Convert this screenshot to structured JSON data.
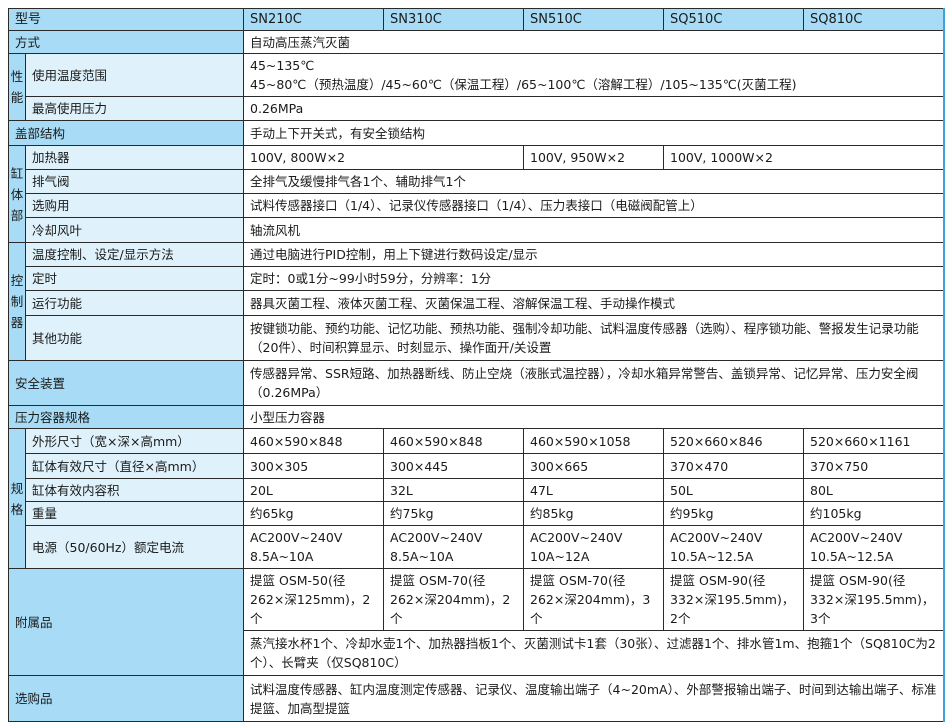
{
  "header": {
    "label": "型号",
    "models": [
      "SN210C",
      "SN310C",
      "SN510C",
      "SQ510C",
      "SQ810C"
    ]
  },
  "method": {
    "label": "方式",
    "value": "自动高压蒸汽灭菌"
  },
  "performance": {
    "group": "性能",
    "temp_label": "使用温度范围",
    "temp_line1": "45~135℃",
    "temp_line2": "45~80℃（预热温度）/45~60℃（保温工程）/65~100℃（溶解工程）/105~135℃(灭菌工程)",
    "pressure_label": "最高使用压力",
    "pressure_value": "0.26MPa"
  },
  "lid": {
    "label": "盖部结构",
    "value": "手动上下开关式，有安全锁结构"
  },
  "tank": {
    "group": "缸体部",
    "heater_label": "加热器",
    "heater": [
      "100V, 800W×2",
      "100V, 950W×2",
      "100V, 1000W×2"
    ],
    "exhaust_label": "排气阀",
    "exhaust": "全排气及缓慢排气各1个、辅助排气1个",
    "option_label": "选购用",
    "option": "试料传感器接口（1/4）、记录仪传感器接口（1/4）、压力表接口（电磁阀配管上）",
    "fan_label": "冷却风叶",
    "fan": "轴流风机"
  },
  "controller": {
    "group": "控制器",
    "temp_label": "温度控制、设定/显示方法",
    "temp": "通过电脑进行PID控制，用上下键进行数码设定/显示",
    "timer_label": "定时",
    "timer": "定时：0或1分~99小时59分，分辨率：1分",
    "run_label": "运行功能",
    "run": "器具灭菌工程、液体灭菌工程、灭菌保温工程、溶解保温工程、手动操作模式",
    "other_label": "其他功能",
    "other": "按键锁功能、预约功能、记忆功能、预热功能、强制冷却功能、试料温度传感器（选购）、程序锁功能、警报发生记录功能（20件）、时间积算显示、时刻显示、操作面开/关设置"
  },
  "safety": {
    "label": "安全装置",
    "value": "传感器异常、SSR短路、加热器断线、防止空烧（液胀式温控器），冷却水箱异常警告、盖锁异常、记忆异常、压力安全阀（0.26MPa）"
  },
  "vessel": {
    "label": "压力容器规格",
    "value": "小型压力容器"
  },
  "specs": {
    "group": "规格",
    "rows": [
      {
        "label": "外形尺寸（宽×深×高mm）",
        "values": [
          "460×590×848",
          "460×590×848",
          "460×590×1058",
          "520×660×846",
          "520×660×1161"
        ]
      },
      {
        "label": "缸体有效尺寸（直径×高mm）",
        "values": [
          "300×305",
          "300×445",
          "300×665",
          "370×470",
          "370×750"
        ]
      },
      {
        "label": "缸体有效内容积",
        "values": [
          "20L",
          "32L",
          "47L",
          "50L",
          "80L"
        ]
      },
      {
        "label": "重量",
        "values": [
          "约65kg",
          "约75kg",
          "约85kg",
          "约95kg",
          "约105kg"
        ]
      },
      {
        "label": "电源（50/60Hz）额定电流",
        "values": [
          "AC200V~240V 8.5A~10A",
          "AC200V~240V 8.5A~10A",
          "AC200V~240V 10A~12A",
          "AC200V~240V 10.5A~12.5A",
          "AC200V~240V 10.5A~12.5A"
        ]
      }
    ]
  },
  "accessories": {
    "label": "附属品",
    "baskets": [
      "提篮 OSM-50(径262×深125mm)，2个",
      "提篮 OSM-70(径262×深204mm)，2个",
      "提篮 OSM-70(径262×深204mm)，3个",
      "提篮 OSM-90(径332×深195.5mm)，2个",
      "提篮 OSM-90(径332×深195.5mm)，3个"
    ],
    "common": "蒸汽接水杯1个、冷却水壶1个、加热器挡板1个、灭菌测试卡1套（30张）、过滤器1个、排水管1m、抱箍1个（SQ810C为2个）、长臂夹（仅SQ810C）"
  },
  "options": {
    "label": "选购品",
    "value": "试料温度传感器、缸内温度测定传感器、记录仪、温度输出端子（4~20mA）、外部警报输出端子、时间到达输出端子、标准提篮、加高型提篮"
  }
}
